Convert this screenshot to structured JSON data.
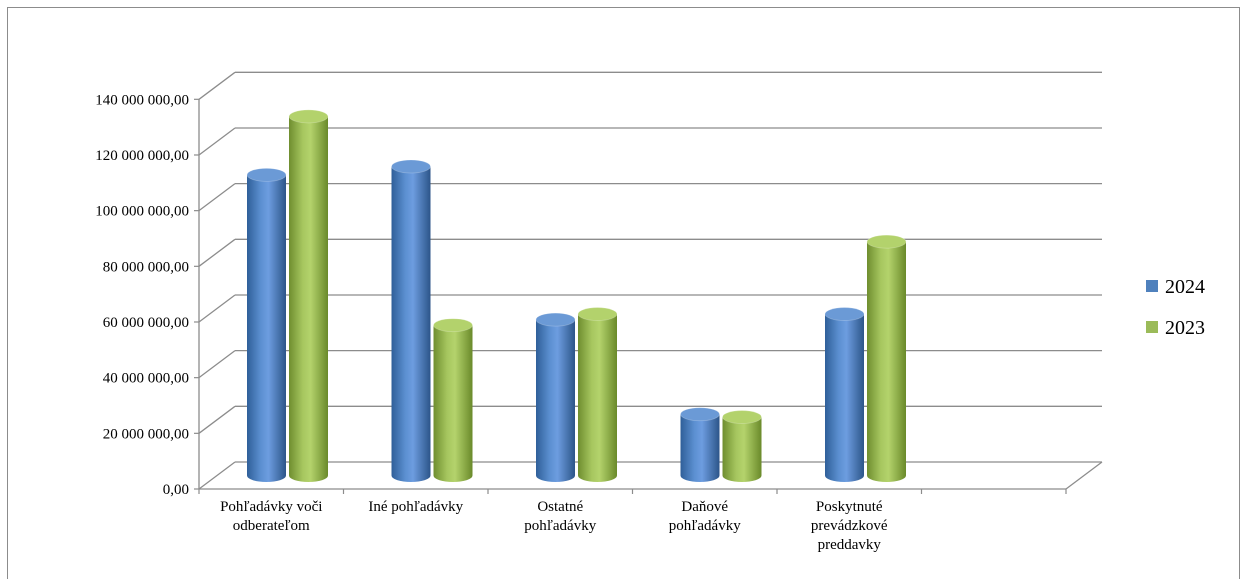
{
  "chart_data": {
    "type": "bar",
    "title": "",
    "xlabel": "",
    "ylabel": "",
    "ylim": [
      0,
      140000000
    ],
    "yticks": [
      "0,00",
      "20 000 000,00",
      "40 000 000,00",
      "60 000 000,00",
      "80 000 000,00",
      "100 000 000,00",
      "120 000 000,00",
      "140 000 000,00"
    ],
    "categories": [
      [
        "Pohľadávky voči",
        "odberateľom"
      ],
      [
        "Iné pohľadávky"
      ],
      [
        "Ostatné",
        "pohľadávky"
      ],
      [
        "Daňové",
        "pohľadávky"
      ],
      [
        "Poskytnuté",
        "prevádzkové",
        "preddavky"
      ]
    ],
    "series": [
      {
        "name": "2024",
        "color": "#4f81bd",
        "values": [
          108000000,
          111000000,
          56000000,
          22000000,
          58000000
        ]
      },
      {
        "name": "2023",
        "color": "#9bbb59",
        "values": [
          129000000,
          54000000,
          58000000,
          21000000,
          84000000
        ]
      }
    ],
    "grid": true,
    "legend": "right",
    "style": "3d-cylinder"
  }
}
